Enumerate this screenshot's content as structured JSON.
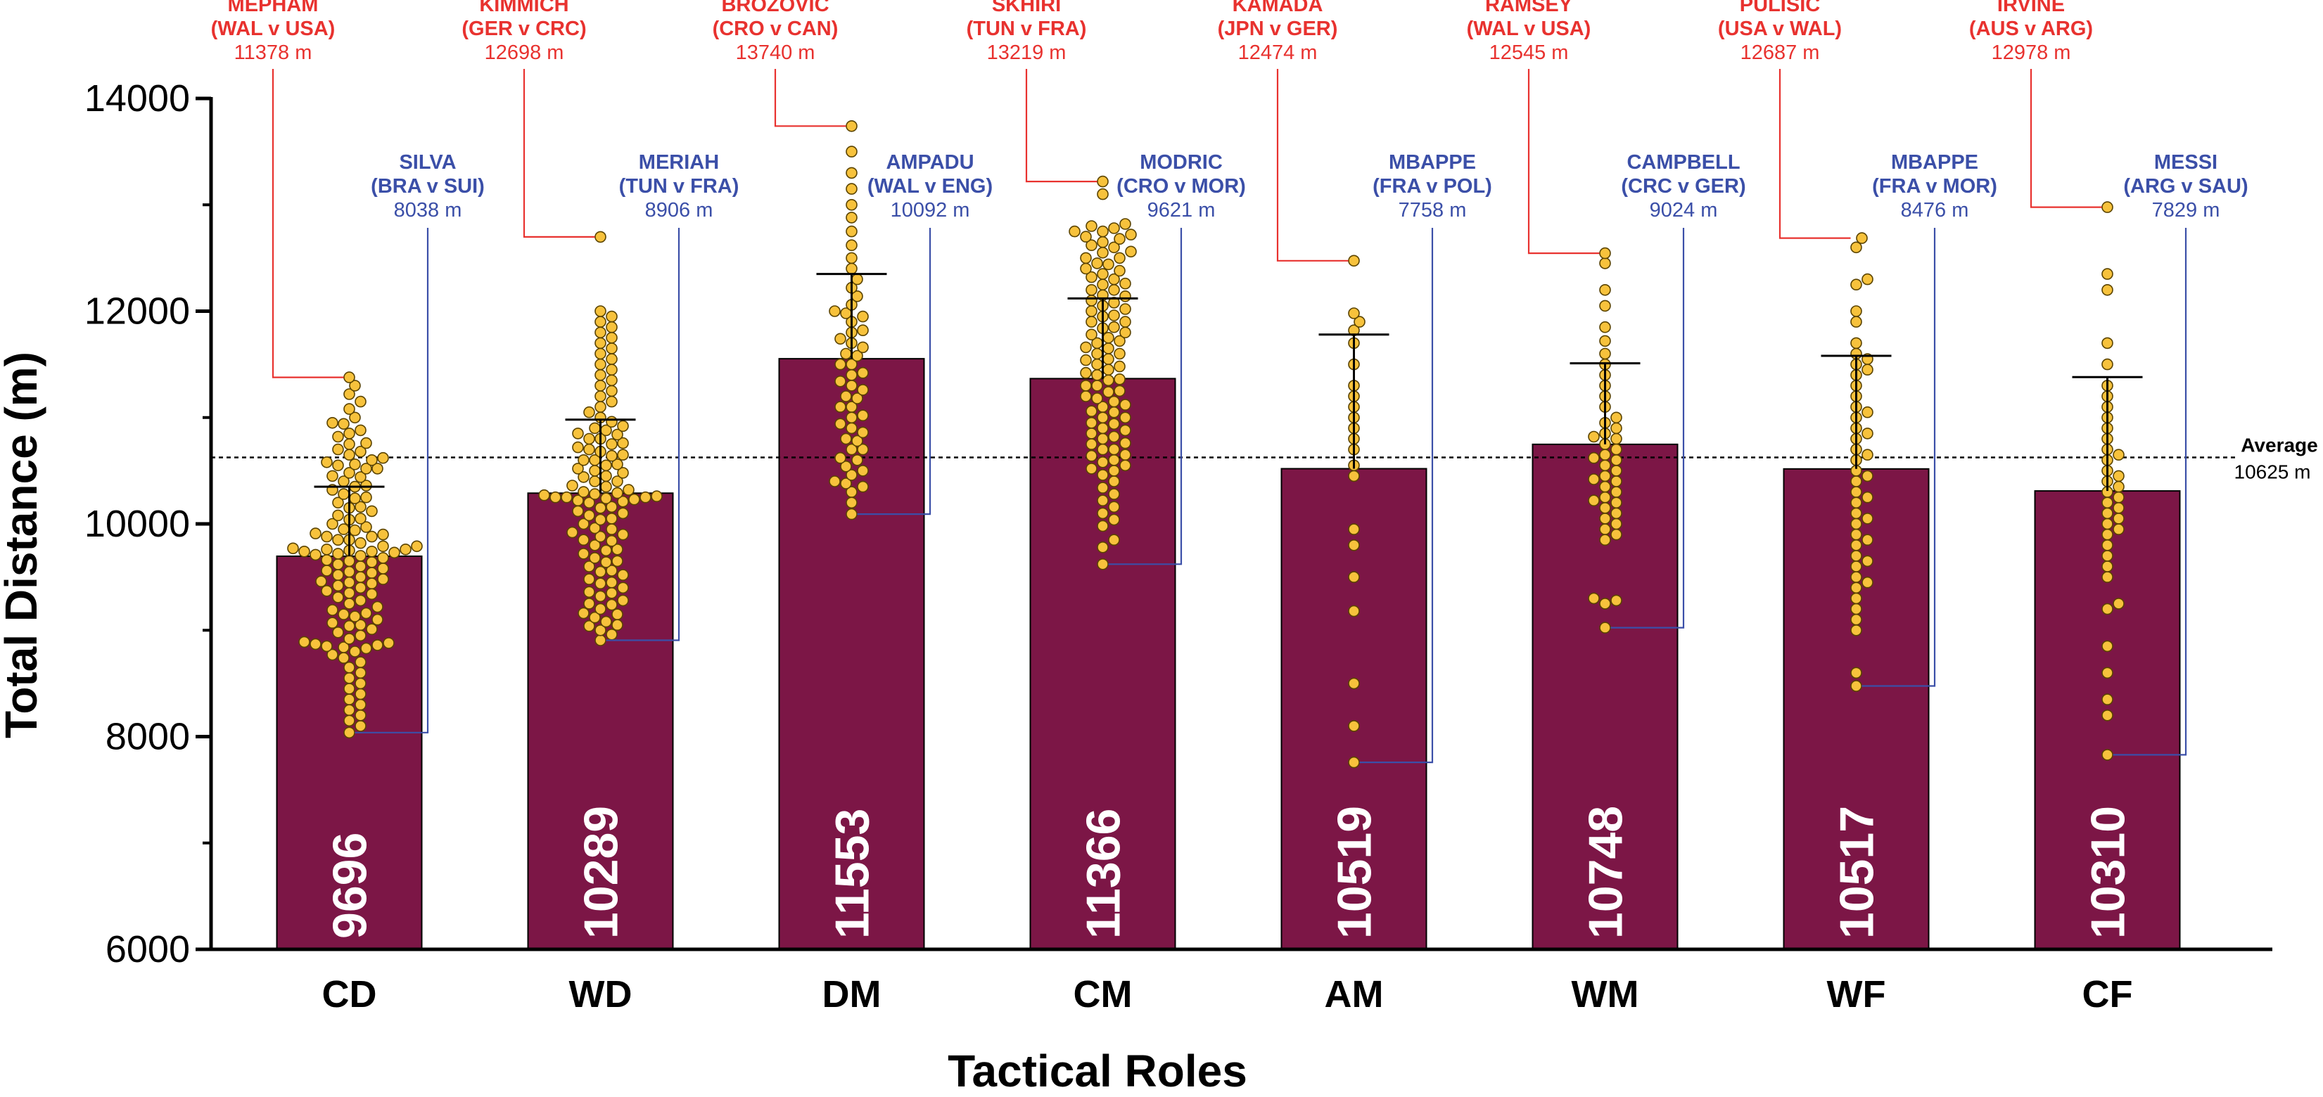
{
  "chart_data": {
    "type": "bar",
    "title": "",
    "xlabel": "Tactical Roles",
    "ylabel": "Total Distance (m)",
    "ylim": [
      6000,
      14000
    ],
    "yticks": [
      6000,
      8000,
      10000,
      12000,
      14000
    ],
    "ytick_labels": [
      "6000",
      "8000",
      "10000",
      "12000",
      "14000"
    ],
    "grid": false,
    "colors": {
      "bar": "#7c1646",
      "dot_fill": "#f7c23c",
      "dot_stroke": "#5a4300",
      "max_annotation": "#e8322f",
      "min_annotation": "#3b4fa8",
      "average_line": "#000000"
    },
    "average": {
      "label": "Average",
      "value": 10625,
      "value_label": "10625 m"
    },
    "categories": [
      {
        "name": "CD",
        "mean": 9696,
        "mean_label": "9696",
        "sd_upper": 10350,
        "max": {
          "player": "MEPHAM",
          "match": "(WAL v USA)",
          "value": 11378,
          "value_label": "11378 m"
        },
        "min": {
          "player": "SILVA",
          "match": "(BRA v SUI)",
          "value": 8038,
          "value_label": "8038 m"
        }
      },
      {
        "name": "WD",
        "mean": 10289,
        "mean_label": "10289",
        "sd_upper": 10980,
        "max": {
          "player": "KIMMICH",
          "match": "(GER v CRC)",
          "value": 12698,
          "value_label": "12698 m"
        },
        "min": {
          "player": "MERIAH",
          "match": "(TUN v FRA)",
          "value": 8906,
          "value_label": "8906 m"
        }
      },
      {
        "name": "DM",
        "mean": 11553,
        "mean_label": "11553",
        "sd_upper": 12350,
        "max": {
          "player": "BROZOVIC",
          "match": "(CRO v CAN)",
          "value": 13740,
          "value_label": "13740 m"
        },
        "min": {
          "player": "AMPADU",
          "match": "(WAL v ENG)",
          "value": 10092,
          "value_label": "10092 m"
        }
      },
      {
        "name": "CM",
        "mean": 11366,
        "mean_label": "11366",
        "sd_upper": 12120,
        "max": {
          "player": "SKHIRI",
          "match": "(TUN v FRA)",
          "value": 13219,
          "value_label": "13219 m"
        },
        "min": {
          "player": "MODRIC",
          "match": "(CRO v MOR)",
          "value": 9621,
          "value_label": "9621 m"
        }
      },
      {
        "name": "AM",
        "mean": 10519,
        "mean_label": "10519",
        "sd_upper": 11780,
        "max": {
          "player": "KAMADA",
          "match": "(JPN v GER)",
          "value": 12474,
          "value_label": "12474 m"
        },
        "min": {
          "player": "MBAPPE",
          "match": "(FRA v POL)",
          "value": 7758,
          "value_label": "7758 m"
        }
      },
      {
        "name": "WM",
        "mean": 10748,
        "mean_label": "10748",
        "sd_upper": 11510,
        "max": {
          "player": "RAMSEY",
          "match": "(WAL v USA)",
          "value": 12545,
          "value_label": "12545 m"
        },
        "min": {
          "player": "CAMPBELL",
          "match": "(CRC v GER)",
          "value": 9024,
          "value_label": "9024 m"
        }
      },
      {
        "name": "WF",
        "mean": 10517,
        "mean_label": "10517",
        "sd_upper": 11580,
        "max": {
          "player": "PULISIC",
          "match": "(USA v WAL)",
          "value": 12687,
          "value_label": "12687 m"
        },
        "min": {
          "player": "MBAPPE",
          "match": "(FRA v MOR)",
          "value": 8476,
          "value_label": "8476 m"
        }
      },
      {
        "name": "CF",
        "mean": 10310,
        "mean_label": "10310",
        "sd_upper": 11380,
        "max": {
          "player": "IRVINE",
          "match": "(AUS v ARG)",
          "value": 12978,
          "value_label": "12978 m"
        },
        "min": {
          "player": "MESSI",
          "match": "(ARG v SAU)",
          "value": 7829,
          "value_label": "7829 m"
        }
      }
    ],
    "points": {
      "CD": [
        11378,
        11300,
        11220,
        11150,
        11080,
        11000,
        10940,
        10880,
        10820,
        10760,
        10700,
        10650,
        10600,
        10560,
        10520,
        10480,
        10440,
        10400,
        10360,
        10320,
        10280,
        10240,
        10200,
        10160,
        10120,
        10080,
        10040,
        10000,
        9970,
        9940,
        9910,
        9880,
        9850,
        9820,
        9790,
        9760,
        9740,
        9720,
        9700,
        9680,
        9660,
        9640,
        9620,
        9600,
        9580,
        9560,
        9540,
        9520,
        9500,
        9480,
        9460,
        9440,
        9420,
        9400,
        9370,
        9340,
        9310,
        9280,
        9250,
        9220,
        9190,
        9160,
        9130,
        9100,
        9070,
        9040,
        9010,
        8980,
        8950,
        8920,
        8890,
        8870,
        8850,
        8830,
        8800,
        8770,
        8740,
        8700,
        8650,
        8600,
        8550,
        8500,
        8450,
        8400,
        8350,
        8300,
        8250,
        8200,
        8150,
        8100,
        8038,
        9750,
        9760,
        9740,
        9730,
        9770,
        9710,
        9790,
        10680,
        10620,
        10580,
        10520,
        9850,
        9880,
        9900,
        9950,
        10150,
        10350,
        10450,
        8880,
        8860,
        8840,
        9050,
        9150,
        9350,
        9450,
        9550,
        9650,
        10050,
        10250,
        10550,
        10750,
        10850,
        10950
      ],
      "WD": [
        12698,
        12000,
        11950,
        11900,
        11850,
        11800,
        11750,
        11700,
        11650,
        11600,
        11550,
        11500,
        11450,
        11400,
        11350,
        11300,
        11250,
        11200,
        11150,
        11100,
        11050,
        11000,
        10960,
        10920,
        10880,
        10840,
        10800,
        10760,
        10720,
        10680,
        10640,
        10600,
        10560,
        10520,
        10480,
        10440,
        10400,
        10360,
        10320,
        10280,
        10260,
        10240,
        10220,
        10200,
        10160,
        10120,
        10080,
        10040,
        10000,
        9960,
        9920,
        9880,
        9840,
        9800,
        9760,
        9720,
        9680,
        9640,
        9600,
        9560,
        9520,
        9480,
        9440,
        9400,
        9360,
        9320,
        9280,
        9240,
        9200,
        9160,
        9120,
        9080,
        9040,
        9000,
        8960,
        8906,
        10900,
        10850,
        10800,
        10750,
        10700,
        10650,
        10600,
        10550,
        10500,
        10450,
        10400,
        10350,
        10300,
        10250,
        10250,
        10250,
        10270,
        10230,
        10290,
        10210,
        10150,
        10100,
        10050,
        9950,
        9900,
        9850,
        9750,
        9650,
        9550,
        9450,
        9350,
        9250,
        9150,
        9050
      ],
      "DM": [
        13740,
        13500,
        13300,
        13150,
        13000,
        12880,
        12750,
        12620,
        12500,
        12400,
        12300,
        12220,
        12140,
        12060,
        11980,
        11900,
        11820,
        11740,
        11660,
        11580,
        11500,
        11420,
        11340,
        11260,
        11180,
        11100,
        11020,
        10940,
        10860,
        10780,
        10700,
        10620,
        10540,
        10460,
        10380,
        10300,
        10200,
        10092,
        12000,
        11950,
        11800,
        11700,
        11600,
        11500,
        11400,
        11300,
        11200,
        11100,
        11000,
        10900,
        10800,
        10700,
        10600,
        10500,
        10400,
        10350
      ],
      "CM": [
        13219,
        13100,
        12820,
        12780,
        12750,
        12720,
        12680,
        12620,
        12560,
        12500,
        12440,
        12380,
        12320,
        12260,
        12200,
        12140,
        12080,
        12020,
        11960,
        11900,
        11840,
        11780,
        11720,
        11660,
        11600,
        11540,
        11480,
        11420,
        11360,
        11300,
        11240,
        11180,
        11120,
        11060,
        11000,
        10940,
        10880,
        10820,
        10760,
        10700,
        10640,
        10580,
        10520,
        10460,
        10400,
        10340,
        10280,
        10220,
        10160,
        10100,
        10040,
        9980,
        9850,
        9780,
        9621,
        12800,
        12750,
        12700,
        12650,
        12600,
        12550,
        12500,
        12450,
        12400,
        12350,
        12300,
        12250,
        12200,
        12150,
        12100,
        12050,
        12000,
        11950,
        11900,
        11850,
        11800,
        11750,
        11700,
        11650,
        11600,
        11550,
        11500,
        11450,
        11400,
        11350,
        11300,
        11250,
        11200,
        11150,
        11100,
        11050,
        11000,
        10950,
        10900,
        10850,
        10800,
        10750,
        10700,
        10650,
        10600,
        10550,
        10500
      ],
      "AM": [
        12474,
        11980,
        11900,
        11820,
        11700,
        11500,
        11300,
        11200,
        11100,
        11000,
        10900,
        10800,
        10700,
        10550,
        10450,
        9950,
        9800,
        9500,
        9180,
        8500,
        8100,
        7758
      ],
      "WM": [
        12545,
        12450,
        12200,
        12050,
        11850,
        11720,
        11600,
        11500,
        11400,
        11300,
        11200,
        11100,
        11000,
        10950,
        10900,
        10850,
        10800,
        10750,
        10700,
        10650,
        10600,
        10550,
        10500,
        10450,
        10400,
        10350,
        10300,
        10250,
        10200,
        10150,
        10100,
        10050,
        10000,
        9950,
        9900,
        9850,
        9300,
        9280,
        9250,
        9024,
        10820,
        10620,
        10420,
        10220
      ],
      "WF": [
        12687,
        12600,
        12300,
        12250,
        12000,
        11900,
        11700,
        11600,
        11500,
        11400,
        11300,
        11200,
        11100,
        11000,
        10900,
        10800,
        10700,
        10600,
        10500,
        10400,
        10300,
        10200,
        10100,
        10000,
        9900,
        9800,
        9700,
        9600,
        9500,
        9400,
        9300,
        9200,
        9100,
        9000,
        8600,
        8476,
        11550,
        11450,
        11050,
        10850,
        10650,
        10450,
        10250,
        10050,
        9850,
        9650,
        9450
      ],
      "CF": [
        12978,
        12350,
        12200,
        11700,
        11500,
        11300,
        11200,
        11100,
        11000,
        10900,
        10800,
        10700,
        10600,
        10500,
        10400,
        10300,
        10200,
        10100,
        10000,
        9900,
        9800,
        9700,
        9600,
        9500,
        9250,
        9200,
        8850,
        8600,
        8350,
        8200,
        7829,
        10650,
        10450,
        10350,
        10250,
        10150,
        10050,
        9950
      ]
    }
  }
}
